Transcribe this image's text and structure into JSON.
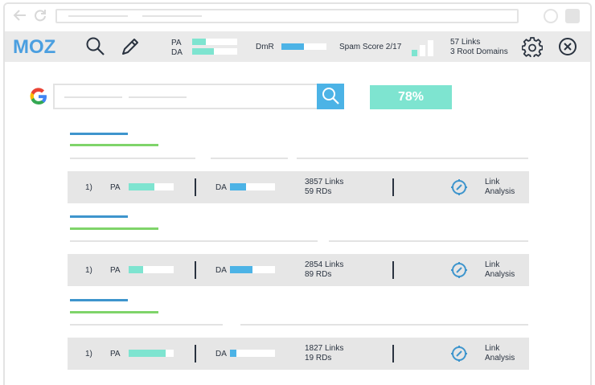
{
  "colors": {
    "blue": "#4cb3e6",
    "teal": "#7ee4d0",
    "green": "#7fd46a",
    "line_blue": "#3e95cd",
    "moz_blue": "#4b9fe0",
    "gray": "#e3e3e3"
  },
  "mozbar": {
    "logo": "MOZ",
    "pa_label": "PA",
    "da_label": "DA",
    "pa_fill": 0.3,
    "da_fill": 0.48,
    "dmr_label": "DmR",
    "dmr_fill": 0.5,
    "spam_label": "Spam Score 2/17",
    "spam_score": 2,
    "spam_max": 17,
    "links_line1": "57 Links",
    "links_line2": "3 Root Domains"
  },
  "search": {
    "score": "78%"
  },
  "results": [
    {
      "rank": "1)",
      "pa_label": "PA",
      "pa_fill": 0.58,
      "da_label": "DA",
      "da_fill": 0.35,
      "links": "3857 Links",
      "rds": "59 RDs",
      "analysis_line1": "Link",
      "analysis_line2": "Analysis"
    },
    {
      "rank": "1)",
      "pa_label": "PA",
      "pa_fill": 0.33,
      "da_label": "DA",
      "da_fill": 0.5,
      "links": "2854 Links",
      "rds": "89 RDs",
      "analysis_line1": "Link",
      "analysis_line2": "Analysis"
    },
    {
      "rank": "1)",
      "pa_label": "PA",
      "pa_fill": 0.82,
      "da_label": "DA",
      "da_fill": 0.15,
      "links": "1827 Links",
      "rds": "19 RDs",
      "analysis_line1": "Link",
      "analysis_line2": "Analysis"
    }
  ]
}
